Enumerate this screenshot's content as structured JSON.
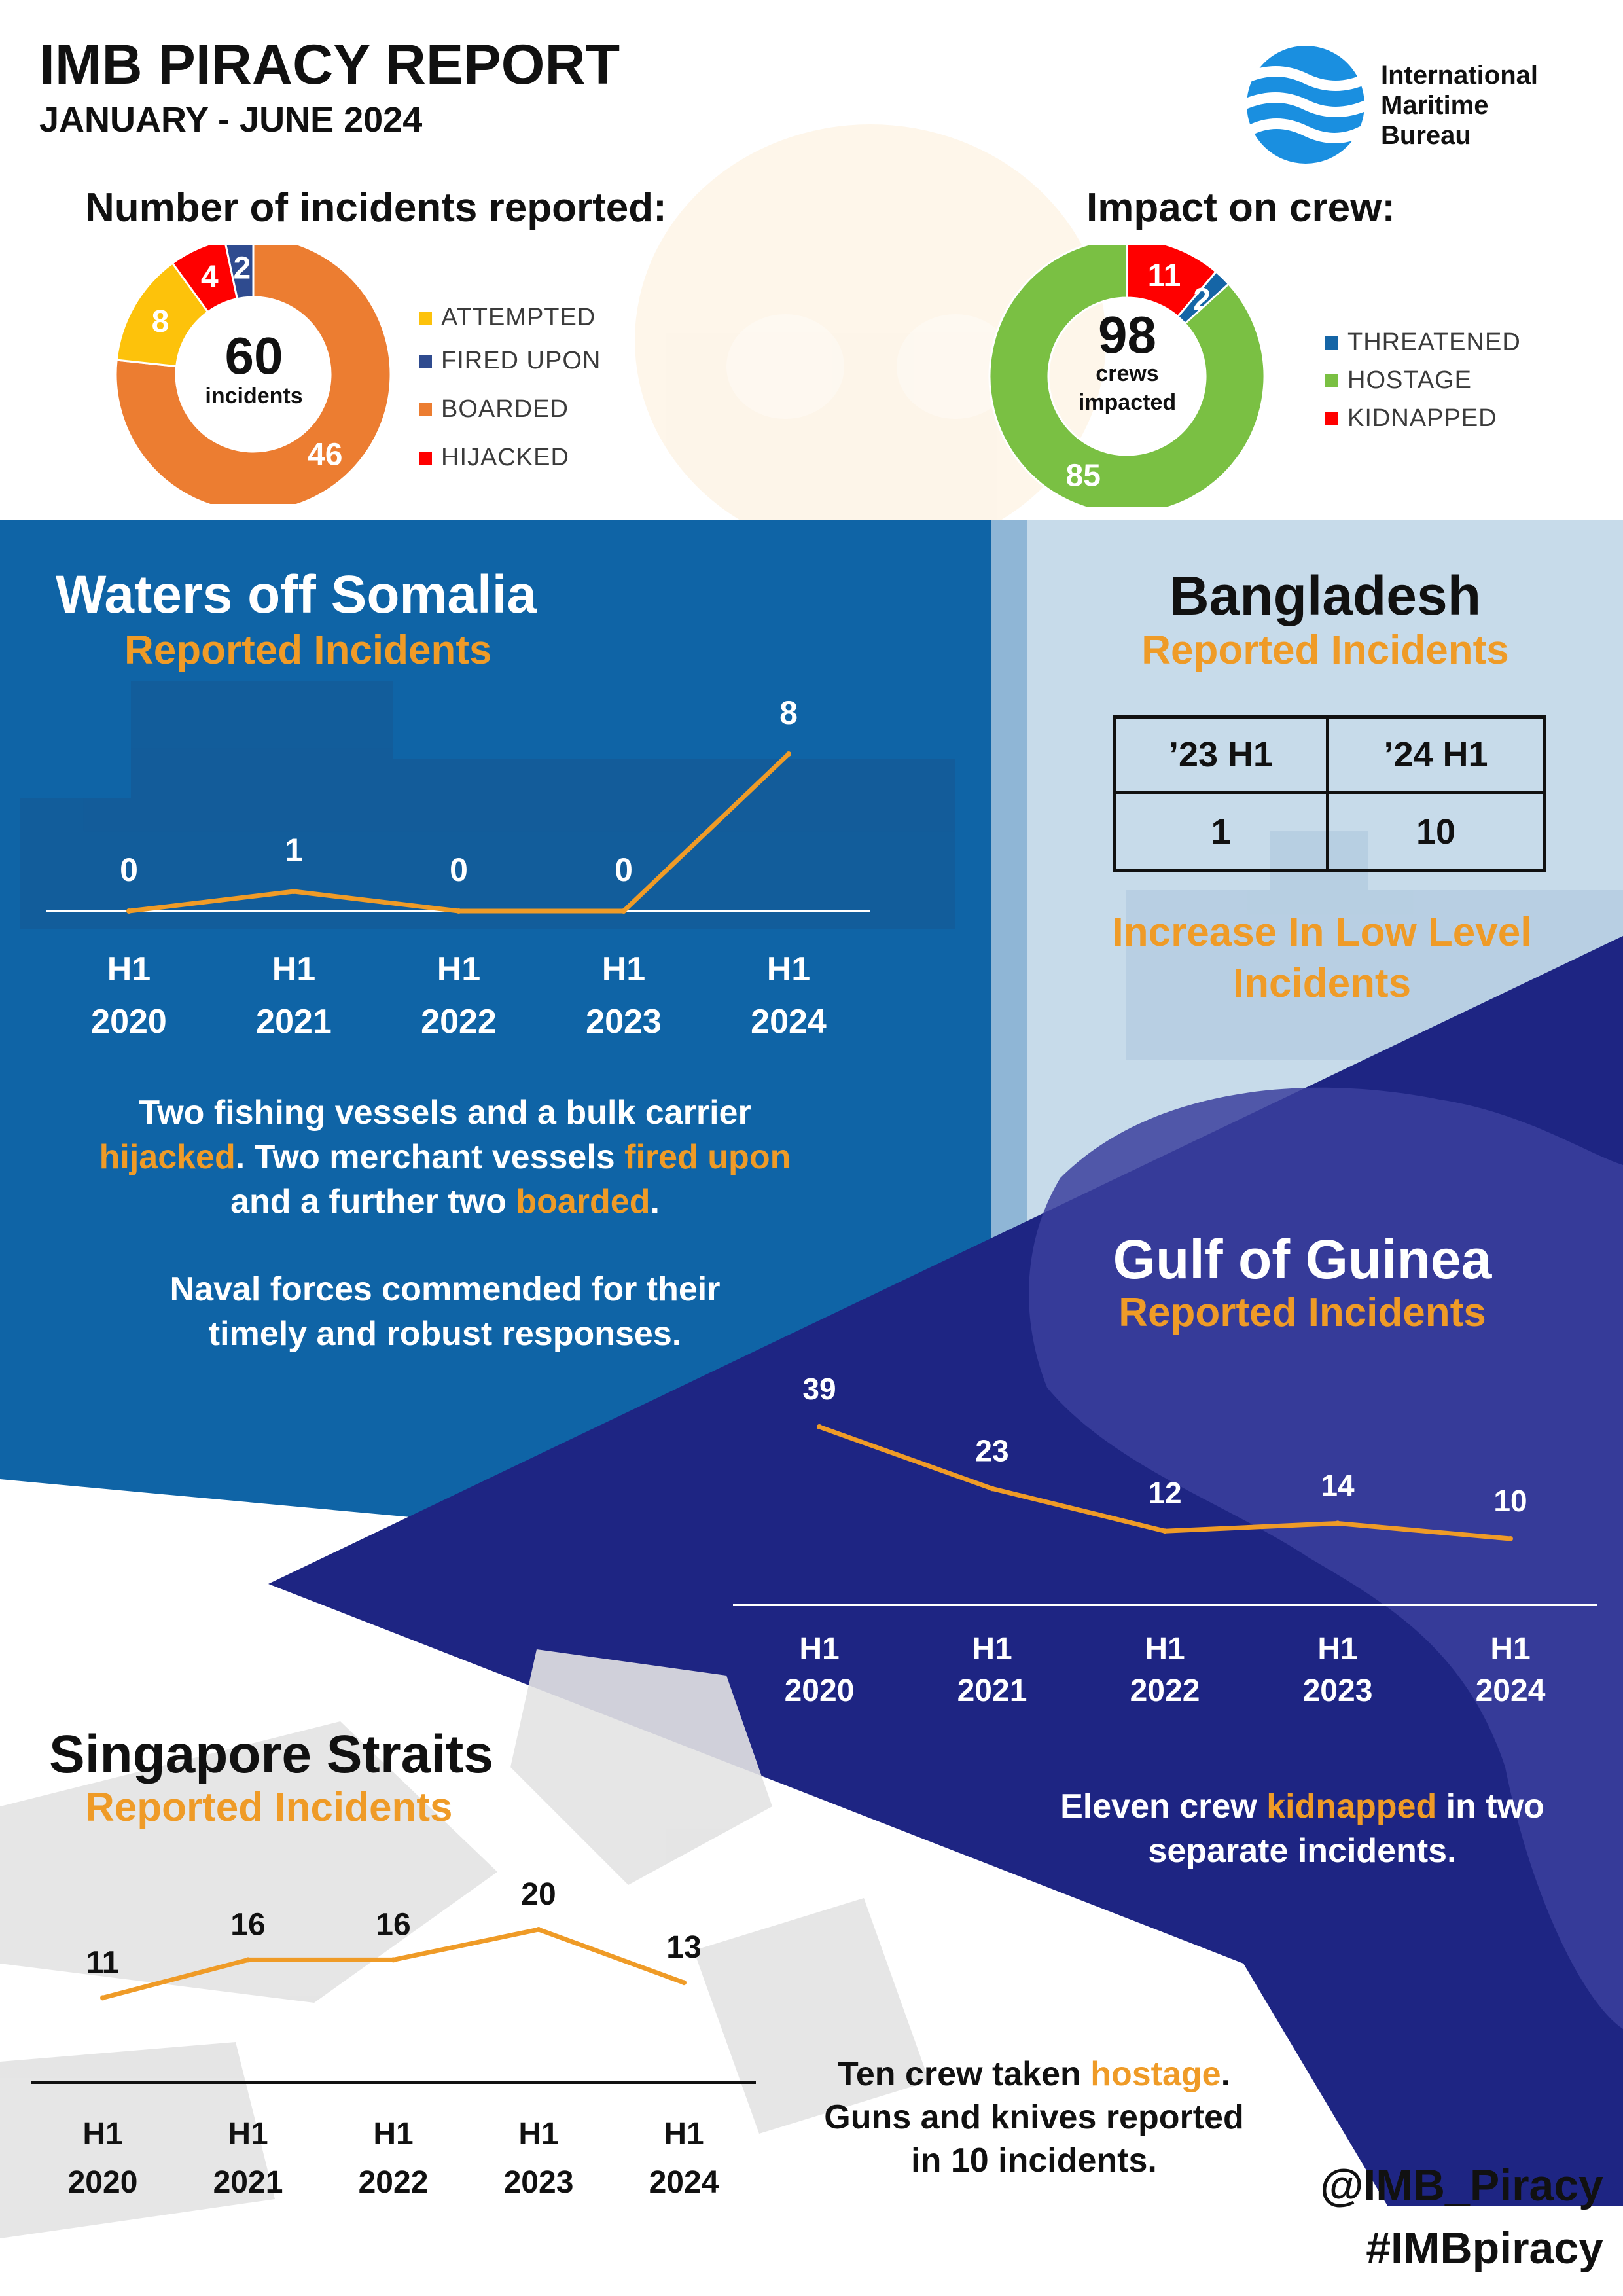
{
  "header": {
    "title": "IMB PIRACY REPORT",
    "subtitle": "JANUARY - JUNE 2024",
    "org_line1": "International",
    "org_line2": "Maritime",
    "org_line3": "Bureau",
    "logo_icon": "waves-globe-icon"
  },
  "colors": {
    "orange": "#ef9b27",
    "somalia_blue": "#0f64a6",
    "bangladesh_bg": "#c7dbea",
    "guinea_navy": "#1e2583",
    "attempted": "#fdc20b",
    "fired_upon": "#2f4b8f",
    "boarded": "#ec7d31",
    "hijacked": "#ff0000",
    "threatened": "#1565a6",
    "hostage": "#7ac043",
    "kidnapped": "#ff0000"
  },
  "incidents": {
    "heading": "Number of incidents reported:",
    "total": "60",
    "total_label": "incidents",
    "legend": [
      "ATTEMPTED",
      "FIRED UPON",
      "BOARDED",
      "HIJACKED"
    ]
  },
  "crew": {
    "heading": "Impact on crew:",
    "total": "98",
    "total_label_1": "crews",
    "total_label_2": "impacted",
    "legend": [
      "THREATENED",
      "HOSTAGE",
      "KIDNAPPED"
    ]
  },
  "somalia": {
    "title": "Waters off Somalia",
    "subtitle": "Reported Incidents",
    "text_1a": "Two fishing vessels and a bulk carrier",
    "text_1b": "hijacked",
    "text_1c": ". Two merchant vessels ",
    "text_1d": "fired upon",
    "text_1e": "and a further two ",
    "text_1f": "boarded",
    "text_1g": ".",
    "text_2a": "Naval forces commended for their",
    "text_2b": "timely and robust responses."
  },
  "bangladesh": {
    "title": "Bangladesh",
    "subtitle": "Reported Incidents",
    "table_headers": [
      "’23 H1",
      "’24 H1"
    ],
    "table_values": [
      "1",
      "10"
    ],
    "note_1": "Increase In Low Level",
    "note_2": "Incidents"
  },
  "guinea": {
    "title": "Gulf of Guinea",
    "subtitle": "Reported Incidents",
    "text_a": "Eleven crew ",
    "text_b": "kidnapped",
    "text_c": " in two",
    "text_d": "separate incidents."
  },
  "singapore": {
    "title": "Singapore Straits",
    "subtitle": "Reported Incidents",
    "text_a": "Ten crew taken ",
    "text_b": "hostage",
    "text_c": ".",
    "text_d": "Guns and knives reported",
    "text_e": "in 10 incidents."
  },
  "footer": {
    "handle": "@IMB_Piracy",
    "hashtag": "#IMBpiracy"
  },
  "chart_data": [
    {
      "type": "pie",
      "title": "Number of incidents reported:",
      "categories": [
        "ATTEMPTED",
        "FIRED UPON",
        "BOARDED",
        "HIJACKED"
      ],
      "values": [
        8,
        2,
        46,
        4
      ],
      "colors": [
        "#fdc20b",
        "#2f4b8f",
        "#ec7d31",
        "#ff0000"
      ],
      "order": [
        "BOARDED",
        "ATTEMPTED",
        "HIJACKED",
        "FIRED UPON"
      ],
      "legend": "right",
      "donut": true
    },
    {
      "type": "pie",
      "title": "Impact on crew:",
      "categories": [
        "THREATENED",
        "HOSTAGE",
        "KIDNAPPED"
      ],
      "values": [
        2,
        85,
        11
      ],
      "colors": [
        "#1565a6",
        "#7ac043",
        "#ff0000"
      ],
      "order": [
        "KIDNAPPED",
        "THREATENED",
        "HOSTAGE"
      ],
      "legend": "right",
      "donut": true
    },
    {
      "type": "line",
      "title": "Waters off Somalia",
      "categories": [
        "H1 2020",
        "H1 2021",
        "H1 2022",
        "H1 2023",
        "H1 2024"
      ],
      "values": [
        0,
        1,
        0,
        0,
        8
      ],
      "ylim": [
        0,
        8
      ],
      "grid": false
    },
    {
      "type": "table",
      "title": "Bangladesh",
      "categories": [
        "’23 H1",
        "’24 H1"
      ],
      "values": [
        1,
        10
      ]
    },
    {
      "type": "line",
      "title": "Gulf of Guinea",
      "categories": [
        "H1 2020",
        "H1 2021",
        "H1 2022",
        "H1 2023",
        "H1 2024"
      ],
      "values": [
        39,
        23,
        12,
        14,
        10
      ],
      "ylim": [
        0,
        39
      ],
      "grid": false
    },
    {
      "type": "line",
      "title": "Singapore Straits",
      "categories": [
        "H1 2020",
        "H1 2021",
        "H1 2022",
        "H1 2023",
        "H1 2024"
      ],
      "values": [
        11,
        16,
        16,
        20,
        13
      ],
      "ylim": [
        0,
        20
      ],
      "grid": false
    }
  ]
}
